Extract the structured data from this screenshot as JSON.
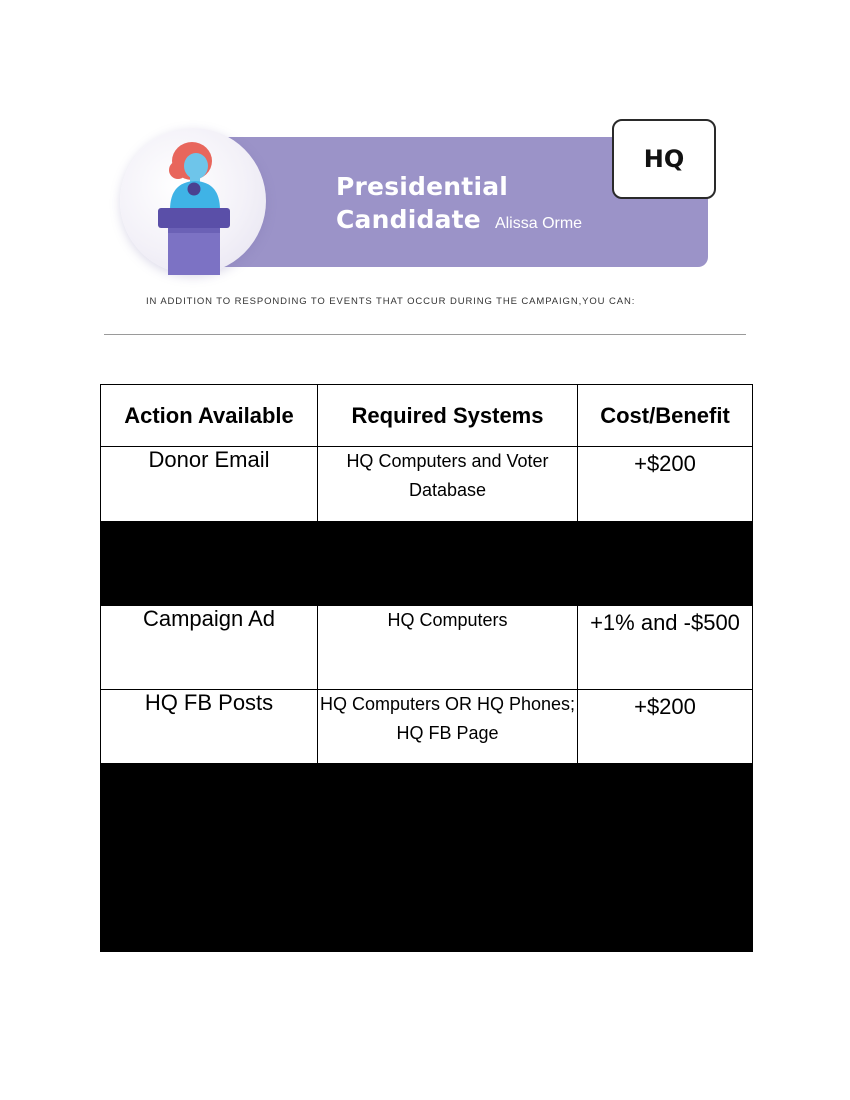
{
  "header": {
    "title_line1": "Presidential",
    "title_line2": "Candidate",
    "candidate_name": "Alissa Orme",
    "badge": "HQ",
    "intro": "IN ADDITION TO RESPONDING TO EVENTS THAT OCCUR DURING THE CAMPAIGN,YOU CAN:"
  },
  "colors": {
    "banner": "#9b93c8",
    "hair": "#e8665c",
    "shirt": "#3fb3e6",
    "podium": "#6d63b5"
  },
  "icons": {
    "illustration": "candidate-at-podium-illustration"
  },
  "table": {
    "headers": [
      "Action Available",
      "Required Systems",
      "Cost/Benefit"
    ],
    "rows": [
      {
        "action": "Donor Email",
        "required": "HQ Computers and Voter Database",
        "cost": "+$200"
      },
      {
        "redacted": true
      },
      {
        "action": "Campaign Ad",
        "required": "HQ Computers",
        "cost": "+1% and -$500"
      },
      {
        "action": "HQ FB Posts",
        "required": "HQ Computers OR HQ Phones; HQ FB Page",
        "cost": "+$200"
      },
      {
        "redacted": true
      },
      {
        "redacted": true
      }
    ]
  }
}
